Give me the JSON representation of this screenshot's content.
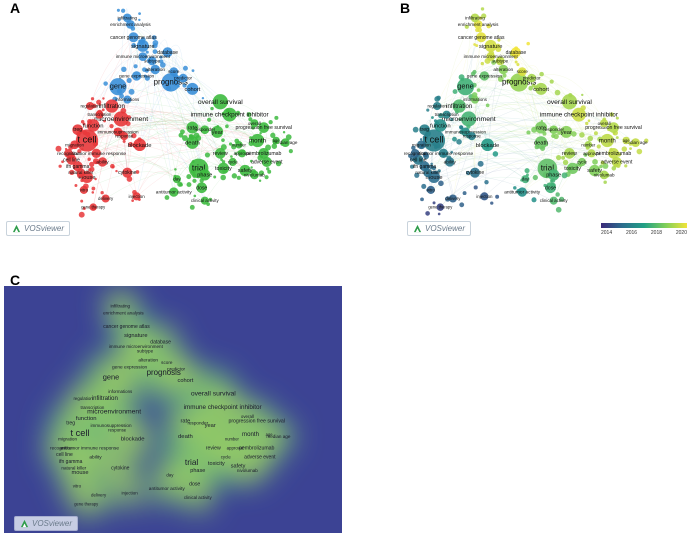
{
  "panels": {
    "a": {
      "letter": "A"
    },
    "b": {
      "letter": "B"
    },
    "c": {
      "letter": "C"
    }
  },
  "logo_text": "VOSviewer",
  "timeline_scale": {
    "ticks": [
      "2014",
      "2016",
      "2018",
      "2020"
    ],
    "colors": [
      "#3b2a7a",
      "#2c6e8e",
      "#21a085",
      "#7fcf5a",
      "#f1e43a"
    ]
  },
  "cluster_colors": {
    "red": "#e8373a",
    "blue": "#3a8fd8",
    "green": "#3dba3f"
  },
  "keywords": [
    {
      "term": "t cell",
      "cluster": "red",
      "weight": 3,
      "year": 2016
    },
    {
      "term": "prognosis",
      "cluster": "blue",
      "weight": 2.4,
      "year": 2018.8
    },
    {
      "term": "gene",
      "cluster": "blue",
      "weight": 2.2,
      "year": 2017.5
    },
    {
      "term": "trial",
      "cluster": "green",
      "weight": 2.6,
      "year": 2018
    },
    {
      "term": "microenvironment",
      "cluster": "red",
      "weight": 1.9,
      "year": 2017.6
    },
    {
      "term": "overall survival",
      "cluster": "green",
      "weight": 1.9,
      "year": 2019
    },
    {
      "term": "immune checkpoint inhibitor",
      "cluster": "green",
      "weight": 1.7,
      "year": 2019.5
    },
    {
      "term": "infiltration",
      "cluster": "red",
      "weight": 1.6,
      "year": 2017.8
    },
    {
      "term": "function",
      "cluster": "red",
      "weight": 1.5,
      "year": 2016.5
    },
    {
      "term": "blockade",
      "cluster": "red",
      "weight": 1.5,
      "year": 2016.8
    },
    {
      "term": "month",
      "cluster": "green",
      "weight": 1.6,
      "year": 2019.3
    },
    {
      "term": "death",
      "cluster": "green",
      "weight": 1.5,
      "year": 2018.2
    },
    {
      "term": "rate",
      "cluster": "green",
      "weight": 1.4,
      "year": 2018.4
    },
    {
      "term": "year",
      "cluster": "green",
      "weight": 1.4,
      "year": 2018.6
    },
    {
      "term": "cohort",
      "cluster": "blue",
      "weight": 1.4,
      "year": 2019
    },
    {
      "term": "signature",
      "cluster": "blue",
      "weight": 1.4,
      "year": 2019.6
    },
    {
      "term": "mouse",
      "cluster": "red",
      "weight": 1.4,
      "year": 2015.5
    },
    {
      "term": "toxicity",
      "cluster": "green",
      "weight": 1.3,
      "year": 2018.3
    },
    {
      "term": "phase",
      "cluster": "green",
      "weight": 1.3,
      "year": 2017.6
    },
    {
      "term": "safety",
      "cluster": "green",
      "weight": 1.3,
      "year": 2018.5
    },
    {
      "term": "progression free survival",
      "cluster": "green",
      "weight": 1.2,
      "year": 2019.2
    },
    {
      "term": "review",
      "cluster": "green",
      "weight": 1.2,
      "year": 2019
    },
    {
      "term": "dose",
      "cluster": "green",
      "weight": 1.2,
      "year": 2017.5
    },
    {
      "term": "pembrolizumab",
      "cluster": "green",
      "weight": 1.2,
      "year": 2019.4
    },
    {
      "term": "adverse event",
      "cluster": "green",
      "weight": 1.1,
      "year": 2019.3
    },
    {
      "term": "database",
      "cluster": "blue",
      "weight": 1.1,
      "year": 2020
    },
    {
      "term": "cancer genome atlas",
      "cluster": "blue",
      "weight": 1.1,
      "year": 2019.8
    },
    {
      "term": "treg",
      "cluster": "red",
      "weight": 1.2,
      "year": 2016
    },
    {
      "term": "cytokine",
      "cluster": "red",
      "weight": 1.1,
      "year": 2015.6
    },
    {
      "term": "cell line",
      "cluster": "red",
      "weight": 1.1,
      "year": 2015.8
    },
    {
      "term": "ifn gamma",
      "cluster": "red",
      "weight": 1.1,
      "year": 2015.5
    },
    {
      "term": "antitumor immune response",
      "cluster": "red",
      "weight": 1,
      "year": 2016
    },
    {
      "term": "ability",
      "cluster": "red",
      "weight": 1,
      "year": 2015.8
    },
    {
      "term": "antitumor activity",
      "cluster": "green",
      "weight": 1,
      "year": 2016.5
    },
    {
      "term": "alteration",
      "cluster": "blue",
      "weight": 1,
      "year": 2018.6
    },
    {
      "term": "gene expression",
      "cluster": "blue",
      "weight": 1,
      "year": 2018
    },
    {
      "term": "enrichment analysis",
      "cluster": "blue",
      "weight": 0.9,
      "year": 2019.8
    },
    {
      "term": "infiltrating",
      "cluster": "blue",
      "weight": 0.9,
      "year": 2019.2
    },
    {
      "term": "subtype",
      "cluster": "blue",
      "weight": 0.9,
      "year": 2019.3
    },
    {
      "term": "immune microenvironment",
      "cluster": "blue",
      "weight": 0.9,
      "year": 2019.5
    },
    {
      "term": "score",
      "cluster": "blue",
      "weight": 0.9,
      "year": 2019.7
    },
    {
      "term": "predictor",
      "cluster": "blue",
      "weight": 0.9,
      "year": 2019
    },
    {
      "term": "responder",
      "cluster": "green",
      "weight": 0.9,
      "year": 2018.5
    },
    {
      "term": "median age",
      "cluster": "green",
      "weight": 0.9,
      "year": 2019.4
    },
    {
      "term": "nivolumab",
      "cluster": "green",
      "weight": 0.9,
      "year": 2019
    },
    {
      "term": "natural killer",
      "cluster": "red",
      "weight": 0.9,
      "year": 2015.6
    },
    {
      "term": "migration",
      "cluster": "red",
      "weight": 0.9,
      "year": 2015.5
    },
    {
      "term": "recognition",
      "cluster": "red",
      "weight": 0.9,
      "year": 2015.3
    },
    {
      "term": "immunosuppression",
      "cluster": "red",
      "weight": 0.9,
      "year": 2016.5
    },
    {
      "term": "transcription",
      "cluster": "red",
      "weight": 0.8,
      "year": 2016.2
    },
    {
      "term": "regulation",
      "cluster": "red",
      "weight": 0.8,
      "year": 2016
    },
    {
      "term": "vitro",
      "cluster": "red",
      "weight": 0.8,
      "year": 2015.2
    },
    {
      "term": "delivery",
      "cluster": "red",
      "weight": 0.8,
      "year": 2015.2
    },
    {
      "term": "injection",
      "cluster": "red",
      "weight": 0.8,
      "year": 2015
    },
    {
      "term": "gene therapy",
      "cluster": "red",
      "weight": 0.7,
      "year": 2014.5
    },
    {
      "term": "response",
      "cluster": "red",
      "weight": 0.8,
      "year": 2016
    },
    {
      "term": "informations",
      "cluster": "blue",
      "weight": 0.8,
      "year": 2018.4
    },
    {
      "term": "approval",
      "cluster": "green",
      "weight": 0.8,
      "year": 2019.2
    },
    {
      "term": "cycle",
      "cluster": "green",
      "weight": 0.8,
      "year": 2018.4
    },
    {
      "term": "overall",
      "cluster": "green",
      "weight": 0.8,
      "year": 2019.3
    },
    {
      "term": "clinical activity",
      "cluster": "green",
      "weight": 0.8,
      "year": 2017.8
    },
    {
      "term": "day",
      "cluster": "green",
      "weight": 0.8,
      "year": 2017.5
    },
    {
      "term": "age",
      "cluster": "green",
      "weight": 0.7,
      "year": 2019.4
    },
    {
      "term": "number",
      "cluster": "green",
      "weight": 0.7,
      "year": 2019
    }
  ]
}
